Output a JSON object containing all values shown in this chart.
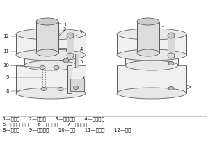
{
  "bg_color": "#ffffff",
  "lc": "#555555",
  "caption_lines": [
    "1—中心轴      2—固定輝      3—送料管道      4—送料气道",
    "5—容积式盛料器      6—连接管道      7—进气气孔",
    "8—旋转盘      9—连接气道      10—通孔      11—盛料盘      12—图罩"
  ],
  "caption_fontsize": 5.0,
  "label_fontsize": 5.0,
  "lw": 0.55
}
